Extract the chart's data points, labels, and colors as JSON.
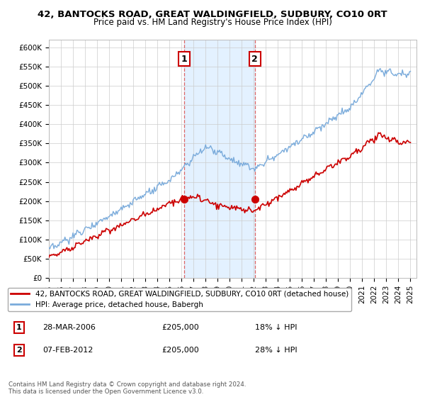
{
  "title": "42, BANTOCKS ROAD, GREAT WALDINGFIELD, SUDBURY, CO10 0RT",
  "subtitle": "Price paid vs. HM Land Registry's House Price Index (HPI)",
  "yticks": [
    0,
    50000,
    100000,
    150000,
    200000,
    250000,
    300000,
    350000,
    400000,
    450000,
    500000,
    550000,
    600000
  ],
  "ytick_labels": [
    "£0",
    "£50K",
    "£100K",
    "£150K",
    "£200K",
    "£250K",
    "£300K",
    "£350K",
    "£400K",
    "£450K",
    "£500K",
    "£550K",
    "£600K"
  ],
  "xlim_start": 1995.0,
  "xlim_end": 2025.5,
  "ylim_min": 0,
  "ylim_max": 620000,
  "hpi_color": "#7aabdb",
  "price_color": "#cc0000",
  "shade_color": "#ddeeff",
  "vline_color": "#dd6666",
  "point1_x": 2006.23,
  "point1_y": 205000,
  "point2_x": 2012.09,
  "point2_y": 205000,
  "point1_date": "28-MAR-2006",
  "point1_price": "£205,000",
  "point1_hpi": "18% ↓ HPI",
  "point2_date": "07-FEB-2012",
  "point2_price": "£205,000",
  "point2_hpi": "28% ↓ HPI",
  "legend_line1": "42, BANTOCKS ROAD, GREAT WALDINGFIELD, SUDBURY, CO10 0RT (detached house)",
  "legend_line2": "HPI: Average price, detached house, Babergh",
  "footnote": "Contains HM Land Registry data © Crown copyright and database right 2024.\nThis data is licensed under the Open Government Licence v3.0.",
  "x_tick_years": [
    1995,
    1996,
    1997,
    1998,
    1999,
    2000,
    2001,
    2002,
    2003,
    2004,
    2005,
    2006,
    2007,
    2008,
    2009,
    2010,
    2011,
    2012,
    2013,
    2014,
    2015,
    2016,
    2017,
    2018,
    2019,
    2020,
    2021,
    2022,
    2023,
    2024,
    2025
  ]
}
